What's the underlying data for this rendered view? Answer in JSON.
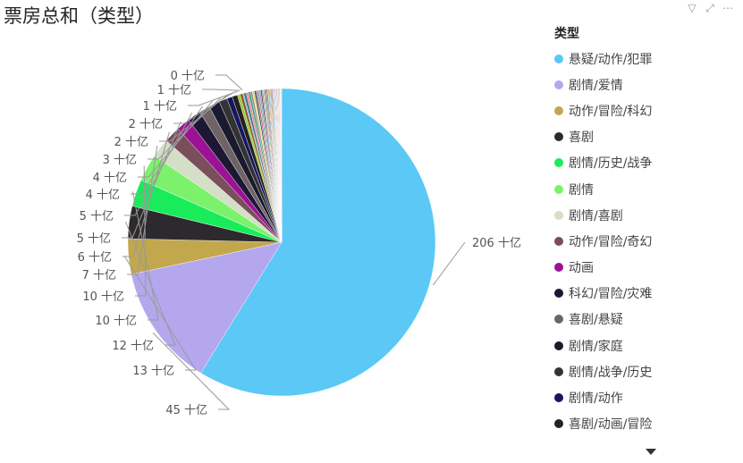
{
  "title": "票房总和（类型）",
  "icons": {
    "filter": "filter-icon",
    "focus": "focus-mode-icon",
    "more": "more-options-icon"
  },
  "legend": {
    "title": "类型",
    "items": [
      {
        "label": "悬疑/动作/犯罪",
        "color": "#5BC8F5"
      },
      {
        "label": "剧情/爱情",
        "color": "#B4A7EE"
      },
      {
        "label": "动作/冒险/科幻",
        "color": "#C2A74C"
      },
      {
        "label": "喜剧",
        "color": "#2D2A2E"
      },
      {
        "label": "剧情/历史/战争",
        "color": "#1AEB5A"
      },
      {
        "label": "剧情",
        "color": "#7CF26C"
      },
      {
        "label": "剧情/喜剧",
        "color": "#D5DEC6"
      },
      {
        "label": "动作/冒险/奇幻",
        "color": "#7A4E5B"
      },
      {
        "label": "动画",
        "color": "#9B1294"
      },
      {
        "label": "科幻/冒险/灾难",
        "color": "#1D1733"
      },
      {
        "label": "喜剧/悬疑",
        "color": "#6E6466"
      },
      {
        "label": "剧情/家庭",
        "color": "#1A1A2E"
      },
      {
        "label": "剧情/战争/历史",
        "color": "#333333"
      },
      {
        "label": "剧情/动作",
        "color": "#161660"
      },
      {
        "label": "喜剧/动画/冒险",
        "color": "#222222"
      }
    ]
  },
  "chart_data": {
    "type": "pie",
    "title": "票房总和（类型）",
    "unit": "十亿",
    "slices": [
      {
        "label": "悬疑/动作/犯罪",
        "value": 206,
        "display": "206 十亿"
      },
      {
        "label": "剧情/爱情",
        "value": 45,
        "display": "45 十亿"
      },
      {
        "label": "动作/冒险/科幻",
        "value": 13,
        "display": "13 十亿"
      },
      {
        "label": "喜剧",
        "value": 12,
        "display": "12 十亿"
      },
      {
        "label": "剧情/历史/战争",
        "value": 10,
        "display": "10 十亿"
      },
      {
        "label": "剧情",
        "value": 10,
        "display": "10 十亿"
      },
      {
        "label": "剧情/喜剧",
        "value": 7,
        "display": "7 十亿"
      },
      {
        "label": "动作/冒险/奇幻",
        "value": 6,
        "display": "6 十亿"
      },
      {
        "label": "动画",
        "value": 5,
        "display": "5 十亿"
      },
      {
        "label": "科幻/冒险/灾难",
        "value": 5,
        "display": "5 十亿"
      },
      {
        "label": "喜剧/悬疑",
        "value": 4,
        "display": "4 十亿"
      },
      {
        "label": "剧情/家庭",
        "value": 4,
        "display": "4 十亿"
      },
      {
        "label": "剧情/战争/历史",
        "value": 3,
        "display": "3 十亿"
      },
      {
        "label": "剧情/动作",
        "value": 2,
        "display": "2 十亿"
      },
      {
        "label": "喜剧/动画/冒险",
        "value": 2,
        "display": "2 十亿"
      },
      {
        "label": "",
        "value": 1,
        "display": "1 十亿"
      },
      {
        "label": "",
        "value": 1,
        "display": "1 十亿"
      },
      {
        "label": "",
        "value": 0.4,
        "display": "0 十亿"
      }
    ],
    "unlabeled_tail": {
      "values": [
        0.9,
        0.8,
        0.8,
        0.7,
        0.7,
        0.6,
        0.6,
        0.6,
        0.5,
        0.5,
        0.5,
        0.4,
        0.4,
        0.4,
        0.4,
        0.3,
        0.3,
        0.3,
        0.3,
        0.3,
        0.3,
        0.3,
        0.2,
        0.2,
        0.2,
        0.2,
        0.2,
        0.2,
        0.2,
        0.2,
        0.2,
        0.2,
        0.2,
        0.2,
        0.1,
        0.1,
        0.1,
        0.1,
        0.1,
        0.1
      ],
      "colors": [
        "#4F6D7A",
        "#E68A9C",
        "#3CA37F",
        "#8C8C8C",
        "#F2D974",
        "#27445C",
        "#C75B7A",
        "#6BB5A0",
        "#A67DB8",
        "#3D3D3D",
        "#7FA3C7",
        "#D9A35B",
        "#2E7D5B",
        "#B84A4A",
        "#5E5EA8",
        "#9ACD32",
        "#8B5A2B",
        "#44AADD",
        "#CC7722",
        "#556B2F",
        "#993366",
        "#66CCCC",
        "#996633",
        "#336699",
        "#CC3399",
        "#77AA44",
        "#AA7744",
        "#4477AA",
        "#AA4477",
        "#55AA88",
        "#8855AA",
        "#AA8855",
        "#5588AA",
        "#AA5588",
        "#88AA55",
        "#7766AA",
        "#AA6677",
        "#66AA77",
        "#997755",
        "#557799"
      ]
    }
  }
}
